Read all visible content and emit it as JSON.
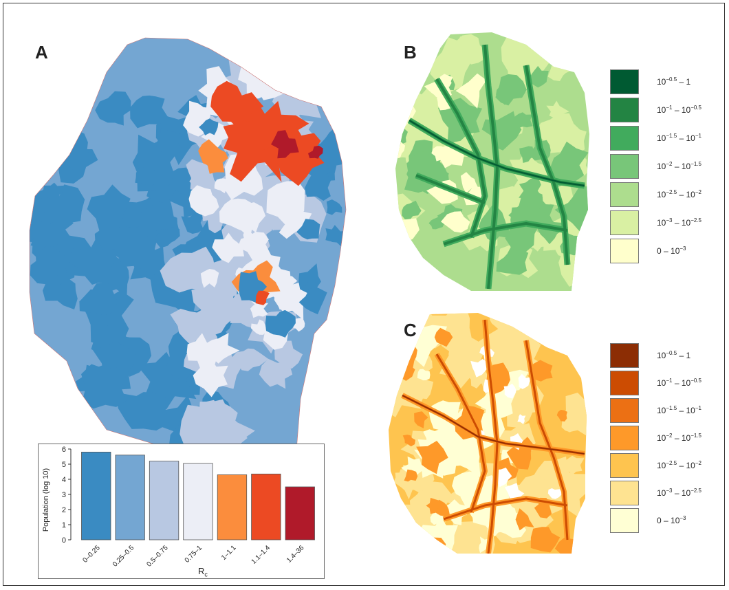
{
  "panels": {
    "a_label": "A",
    "b_label": "B",
    "c_label": "C"
  },
  "map_a_palette": {
    "dark_blue": "#3a8bc2",
    "mid_blue": "#74a6d2",
    "light_blue": "#b8c8e2",
    "pale": "#eceef6",
    "orange": "#fb8d3d",
    "red_orange": "#ec4a23",
    "dark_red": "#b01a2a"
  },
  "map_b_colors": [
    "#ffffcc",
    "#d9f0a3",
    "#addd8e",
    "#78c679",
    "#41ab5d",
    "#238443",
    "#005a32"
  ],
  "map_c_colors": [
    "#ffffd4",
    "#fee391",
    "#fec44f",
    "#fe9929",
    "#ec7014",
    "#cc4c02",
    "#8c2d04"
  ],
  "legend_b": [
    {
      "label": "10^-0.5 – 1",
      "color": "#005a32"
    },
    {
      "label": "10^-1 – 10^-0.5",
      "color": "#238443"
    },
    {
      "label": "10^-1.5 – 10^-1",
      "color": "#41ab5d"
    },
    {
      "label": "10^-2 – 10^-1.5",
      "color": "#78c679"
    },
    {
      "label": "10^-2.5 – 10^-2",
      "color": "#addd8e"
    },
    {
      "label": "10^-3 – 10^-2.5",
      "color": "#d9f0a3"
    },
    {
      "label": "0 – 10^-3",
      "color": "#ffffcc"
    }
  ],
  "legend_c": [
    {
      "label": "10^-0.5 – 1",
      "color": "#8c2d04"
    },
    {
      "label": "10^-1 – 10^-0.5",
      "color": "#cc4c02"
    },
    {
      "label": "10^-1.5 – 10^-1",
      "color": "#ec7014"
    },
    {
      "label": "10^-2 – 10^-1.5",
      "color": "#fe9929"
    },
    {
      "label": "10^-2.5 – 10^-2",
      "color": "#fec44f"
    },
    {
      "label": "10^-3 – 10^-2.5",
      "color": "#fee391"
    },
    {
      "label": "0 – 10^-3",
      "color": "#ffffd4"
    }
  ],
  "chart_data": {
    "type": "bar",
    "categories": [
      "0–0.25",
      "0.25–0.5",
      "0.5–0.75",
      "0.75–1",
      "1–1.1",
      "1.1–1.4",
      "1.4–36"
    ],
    "values": [
      5.8,
      5.6,
      5.2,
      5.05,
      4.3,
      4.35,
      3.5
    ],
    "colors": [
      "#3a8bc2",
      "#74a6d2",
      "#b8c8e2",
      "#eceef6",
      "#fb8d3d",
      "#ec4a23",
      "#b01a2a"
    ],
    "title": "",
    "xlabel": "Rc",
    "ylabel": "Population (log 10)",
    "ylim": [
      0,
      6
    ],
    "yticks": [
      0,
      1,
      2,
      3,
      4,
      5,
      6
    ],
    "grid": false
  }
}
